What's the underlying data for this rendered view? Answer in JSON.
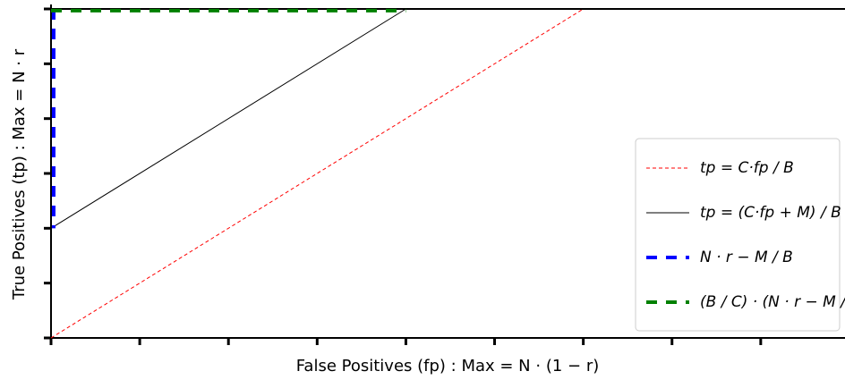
{
  "chart_data": {
    "type": "line",
    "x_label": "False Positives (fp) : Max = N · (1 − r)",
    "y_label": "True Positives (tp) : Max  = N · r",
    "xlim": [
      0,
      8.95
    ],
    "ylim": [
      0,
      6
    ],
    "xticks": [
      0,
      1,
      2,
      3,
      4,
      5,
      6,
      7,
      8
    ],
    "yticks": [
      0,
      1,
      2,
      3,
      4,
      5,
      6
    ],
    "grid": false,
    "legend": "lower right",
    "series": [
      {
        "name": "tp = C·fp / B",
        "color": "#ff0000",
        "linestyle": "dotted",
        "linewidth": 1,
        "x": [
          0,
          6
        ],
        "values": [
          0,
          6
        ]
      },
      {
        "name": "tp = (C·fp + M) / B",
        "color": "#000000",
        "linestyle": "solid",
        "linewidth": 1,
        "x": [
          0,
          4
        ],
        "values": [
          2,
          6
        ]
      },
      {
        "name": "N · r − M / B",
        "color": "#0000ff",
        "linestyle": "dashed",
        "linewidth": 4,
        "x": [
          0.03,
          0.03
        ],
        "values": [
          6,
          2
        ]
      },
      {
        "name": "(B / C) · (N · r − M / B)",
        "color": "#008000",
        "linestyle": "dashed",
        "linewidth": 4,
        "x": [
          0,
          4
        ],
        "values": [
          5.97,
          5.97
        ]
      }
    ]
  }
}
